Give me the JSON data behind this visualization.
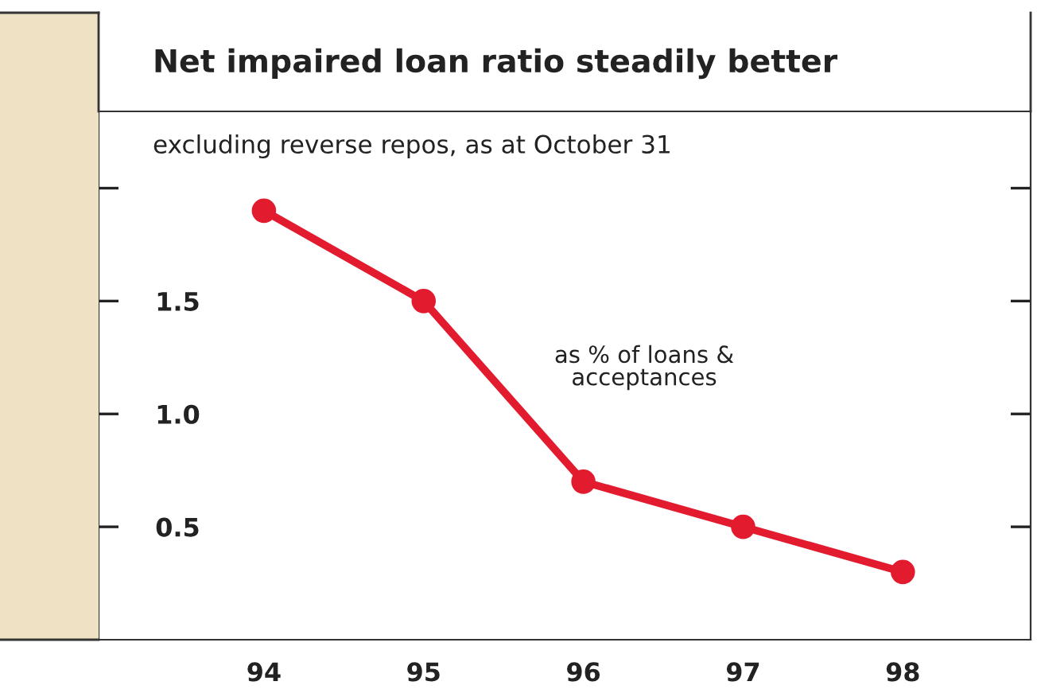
{
  "chart_data": {
    "type": "line",
    "title": "Net impaired loan ratio steadily better",
    "subtitle": "excluding reverse repos, as at October 31",
    "annotations": [
      "as % of loans &\nacceptances"
    ],
    "categories": [
      "94",
      "95",
      "96",
      "97",
      "98"
    ],
    "series": [
      {
        "color": "#e31b2f",
        "values": [
          1.9,
          1.5,
          0.7,
          0.5,
          0.3
        ]
      }
    ],
    "ylim": [
      0,
      2.34
    ],
    "yticks": [
      {
        "value": 0.5,
        "label": "0.5"
      },
      {
        "value": 1.0,
        "label": "1.0"
      },
      {
        "value": 1.5,
        "label": "1.5"
      },
      {
        "value": 2.0,
        "label": null
      }
    ],
    "marker": "circle",
    "line_style": "solid",
    "grid": false
  }
}
